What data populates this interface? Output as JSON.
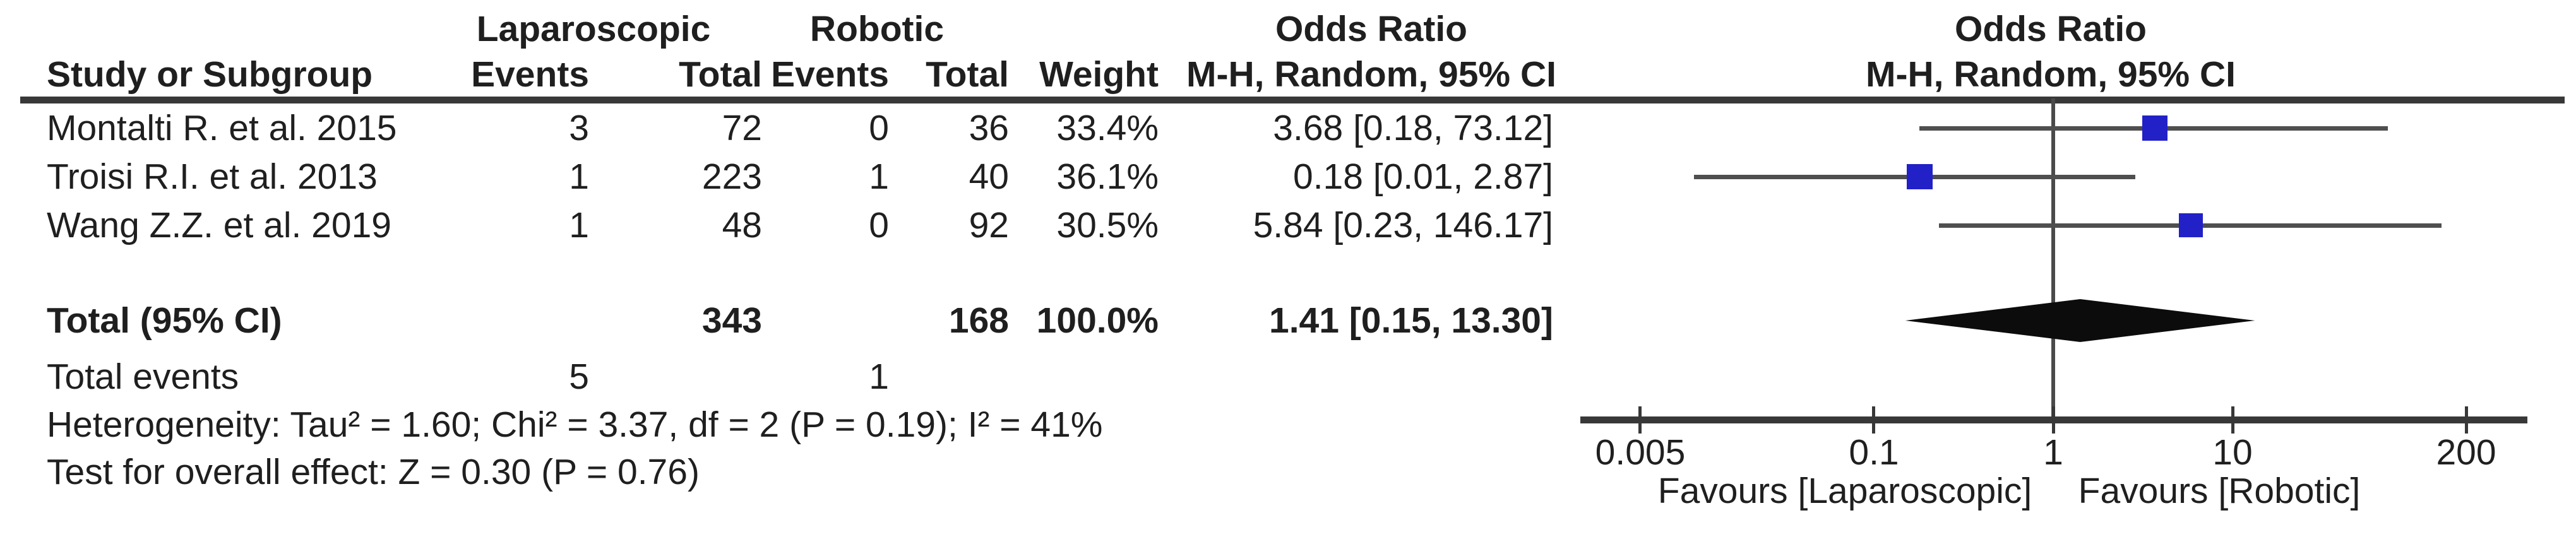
{
  "table": {
    "header": {
      "study": "Study or Subgroup",
      "group1": "Laparoscopic",
      "group2": "Robotic",
      "events1": "Events",
      "total1": "Total",
      "events2": "Events",
      "total2": "Total",
      "weight": "Weight",
      "or_title": "Odds Ratio",
      "or_subtitle": "M-H, Random, 95% CI",
      "plot_title": "Odds Ratio",
      "plot_subtitle": "M-H, Random, 95% CI"
    },
    "rows": [
      {
        "study": "Montalti R. et al. 2015",
        "lap_events": "3",
        "lap_total": "72",
        "rob_events": "0",
        "rob_total": "36",
        "weight": "33.4%",
        "or_ci": "3.68 [0.18, 73.12]"
      },
      {
        "study": "Troisi R.I. et al. 2013",
        "lap_events": "1",
        "lap_total": "223",
        "rob_events": "1",
        "rob_total": "40",
        "weight": "36.1%",
        "or_ci": "0.18 [0.01, 2.87]"
      },
      {
        "study": "Wang Z.Z. et al. 2019",
        "lap_events": "1",
        "lap_total": "48",
        "rob_events": "0",
        "rob_total": "92",
        "weight": "30.5%",
        "or_ci": "5.84 [0.23, 146.17]"
      }
    ],
    "total_row": {
      "label": "Total (95% CI)",
      "lap_total": "343",
      "rob_total": "168",
      "weight": "100.0%",
      "or_ci": "1.41 [0.15, 13.30]"
    },
    "total_events": {
      "label": "Total events",
      "lap": "5",
      "rob": "1"
    },
    "heterogeneity": "Heterogeneity: Tau² = 1.60; Chi² = 3.37, df = 2 (P = 0.19); I² = 41%",
    "overall_effect": "Test for overall effect: Z = 0.30 (P = 0.76)"
  },
  "chart_data": {
    "type": "forest",
    "effect_measure": "Odds Ratio",
    "method": "M-H, Random, 95% CI",
    "scale": "log10",
    "axis_ticks": [
      0.005,
      0.1,
      1,
      10,
      200
    ],
    "axis_tick_labels": [
      "0.005",
      "0.1",
      "1",
      "10",
      "200"
    ],
    "null_line": 1,
    "favours_left": "Favours [Laparoscopic]",
    "favours_right": "Favours [Robotic]",
    "studies": [
      {
        "name": "Montalti R. et al. 2015",
        "or": 3.68,
        "ci_low": 0.18,
        "ci_high": 73.12,
        "weight_pct": 33.4
      },
      {
        "name": "Troisi R.I. et al. 2013",
        "or": 0.18,
        "ci_low": 0.01,
        "ci_high": 2.87,
        "weight_pct": 36.1
      },
      {
        "name": "Wang Z.Z. et al. 2019",
        "or": 5.84,
        "ci_low": 0.23,
        "ci_high": 146.17,
        "weight_pct": 30.5
      }
    ],
    "total": {
      "or": 1.41,
      "ci_low": 0.15,
      "ci_high": 13.3
    },
    "colors": {
      "square": "#2121c7",
      "diamond": "#0c0c0c",
      "ci_line": "#4f4f4f",
      "axis": "#383838",
      "text": "#1f1f1f"
    }
  }
}
